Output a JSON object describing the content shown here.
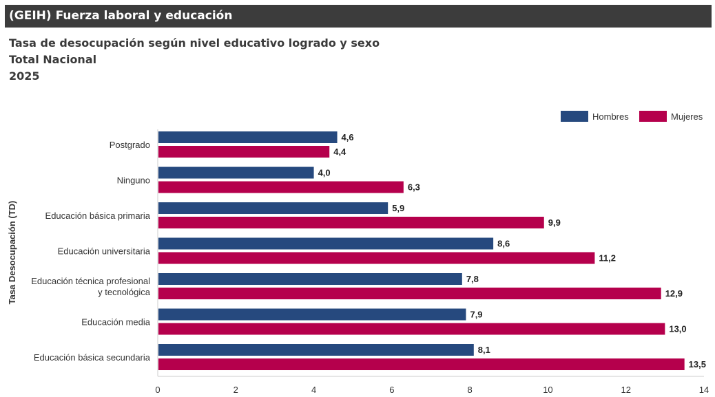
{
  "header": {
    "title": "(GEIH) Fuerza laboral y educación"
  },
  "subtitle": {
    "line1": "Tasa de desocupación según nivel educativo logrado y sexo",
    "line2": "Total Nacional",
    "line3": "2025"
  },
  "colors": {
    "hombres": "#26497e",
    "mujeres": "#b5004c"
  },
  "chart_data": {
    "type": "bar",
    "orientation": "horizontal",
    "ylabel": "Tasa Desocupación (TD)",
    "xlabel": "",
    "xlim": [
      0,
      14
    ],
    "xticks": [
      "0",
      "2",
      "4",
      "6",
      "8",
      "10",
      "12",
      "14"
    ],
    "xtick_values": [
      0,
      2,
      4,
      6,
      8,
      10,
      12,
      14
    ],
    "grid": false,
    "legend_position": "top-right",
    "categories": [
      [
        "Postgrado"
      ],
      [
        "Ninguno"
      ],
      [
        "Educación básica primaria"
      ],
      [
        "Educación universitaria"
      ],
      [
        "Educación técnica profesional",
        "y tecnológica"
      ],
      [
        "Educación media"
      ],
      [
        "Educación básica secundaria"
      ]
    ],
    "series": [
      {
        "name": "Hombres",
        "values": [
          4.6,
          4.0,
          5.9,
          8.6,
          7.8,
          7.9,
          8.1
        ],
        "labels": [
          "4,6",
          "4,0",
          "5,9",
          "8,6",
          "7,8",
          "7,9",
          "8,1"
        ]
      },
      {
        "name": "Mujeres",
        "values": [
          4.4,
          6.3,
          9.9,
          11.2,
          12.9,
          13.0,
          13.5
        ],
        "labels": [
          "4,4",
          "6,3",
          "9,9",
          "11,2",
          "12,9",
          "13,0",
          "13,5"
        ]
      }
    ]
  }
}
